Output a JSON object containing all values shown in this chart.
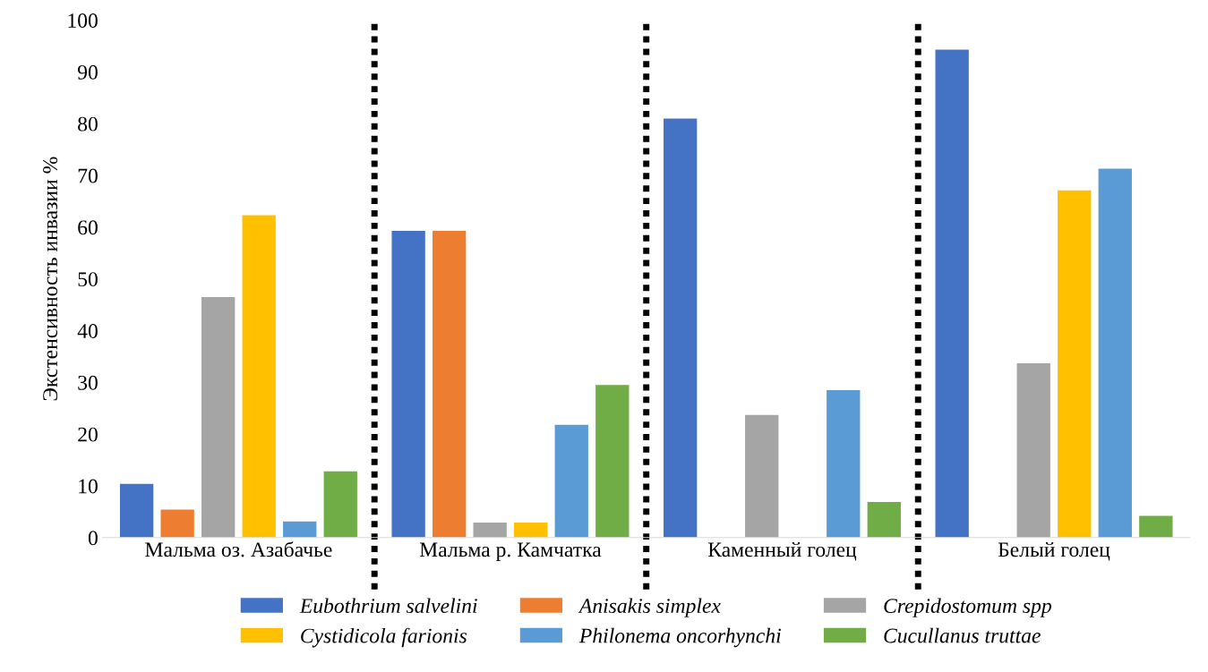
{
  "chart_data": {
    "type": "bar",
    "ylabel": "Экстенсивность инвазии %",
    "categories": [
      "Мальма оз. Азабачье",
      "Мальма р. Камчатка",
      "Каменный голец",
      "Белый голец"
    ],
    "series": [
      {
        "name": "Eubothrium salvelini",
        "color": "#4472c4",
        "values": [
          10.4,
          59.3,
          81,
          94.3
        ]
      },
      {
        "name": "Anisakis simplex",
        "color": "#ed7d31",
        "values": [
          5.4,
          59.3,
          0,
          0
        ]
      },
      {
        "name": "Crepidostomum spp",
        "color": "#a5a5a5",
        "values": [
          46.5,
          2.9,
          23.7,
          33.7
        ]
      },
      {
        "name": "Cystidicola farionis",
        "color": "#ffc000",
        "values": [
          62.3,
          2.9,
          0,
          67.1
        ]
      },
      {
        "name": "Philonema oncorhynchi",
        "color": "#5b9bd5",
        "values": [
          3.1,
          21.8,
          28.5,
          71.3
        ]
      },
      {
        "name": "Cucullanus truttae",
        "color": "#70ad47",
        "values": [
          12.8,
          29.5,
          6.9,
          4.2
        ]
      }
    ],
    "ylim": [
      0,
      100
    ],
    "yticks": [
      0,
      10,
      20,
      30,
      40,
      50,
      60,
      70,
      80,
      90,
      100
    ],
    "grid": false,
    "legend": "bottom"
  }
}
